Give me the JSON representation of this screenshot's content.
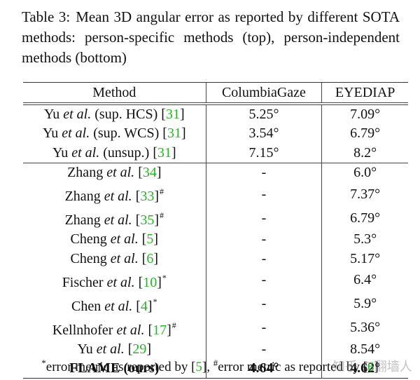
{
  "caption": {
    "label": "Table 3:",
    "text": "Mean 3D angular error as reported by different SOTA methods: person-specific methods (top), person-independent methods (bottom)"
  },
  "table": {
    "headers": [
      "Method",
      "ColumbiaGaze",
      "EYEDIAP"
    ],
    "groups": [
      {
        "name": "person-specific",
        "rows": [
          {
            "author": "Yu",
            "etal": "et al.",
            "extra": " (sup. HCS) ",
            "ref": "31",
            "mark": "",
            "columbia": "5.25°",
            "eyediap": "7.09°",
            "bold": false
          },
          {
            "author": "Yu",
            "etal": "et al.",
            "extra": " (sup. WCS) ",
            "ref": "31",
            "mark": "",
            "columbia": "3.54°",
            "eyediap": "6.79°",
            "bold": false
          },
          {
            "author": "Yu",
            "etal": "et al.",
            "extra": " (unsup.) ",
            "ref": "31",
            "mark": "",
            "columbia": "7.15°",
            "eyediap": "8.2°",
            "bold": false
          }
        ]
      },
      {
        "name": "person-independent",
        "rows": [
          {
            "author": "Zhang",
            "etal": "et al.",
            "extra": " ",
            "ref": "34",
            "mark": "",
            "columbia": "-",
            "eyediap": "6.0°",
            "bold": false
          },
          {
            "author": "Zhang",
            "etal": "et al.",
            "extra": " ",
            "ref": "33",
            "mark": "#",
            "columbia": "-",
            "eyediap": "7.37°",
            "bold": false
          },
          {
            "author": "Zhang",
            "etal": "et al.",
            "extra": " ",
            "ref": "35",
            "mark": "#",
            "columbia": "-",
            "eyediap": "6.79°",
            "bold": false
          },
          {
            "author": "Cheng",
            "etal": "et al.",
            "extra": " ",
            "ref": "5",
            "mark": "",
            "columbia": "-",
            "eyediap": "5.3°",
            "bold": false
          },
          {
            "author": "Cheng",
            "etal": "et al.",
            "extra": " ",
            "ref": "6",
            "mark": "",
            "columbia": "-",
            "eyediap": "5.17°",
            "bold": false
          },
          {
            "author": "Fischer",
            "etal": "et al.",
            "extra": " ",
            "ref": "10",
            "mark": "*",
            "columbia": "-",
            "eyediap": "6.4°",
            "bold": false
          },
          {
            "author": "Chen",
            "etal": "et al.",
            "extra": " ",
            "ref": "4",
            "mark": "*",
            "columbia": "-",
            "eyediap": "5.9°",
            "bold": false
          },
          {
            "author": "Kellnhofer",
            "etal": "et al.",
            "extra": " ",
            "ref": "17",
            "mark": "#",
            "columbia": "-",
            "eyediap": "5.36°",
            "bold": false
          },
          {
            "author": "Yu",
            "etal": "et al.",
            "extra": " ",
            "ref": "29",
            "mark": "",
            "columbia": "-",
            "eyediap": "8.54°",
            "bold": false
          },
          {
            "author": "FLAME (ours)",
            "etal": "",
            "extra": "",
            "ref": "",
            "mark": "",
            "columbia": "4.64°",
            "eyediap": "4.62°",
            "bold": true
          }
        ]
      }
    ]
  },
  "footnote": {
    "star": "*",
    "star_text": "error metric as reported by [",
    "star_ref": "5",
    "mid": "], ",
    "hash": "#",
    "hash_text": "error metric as reported by [",
    "hash_ref": "6",
    "end": "]"
  },
  "watermark": "知乎 @翻墙人",
  "colors": {
    "citation": "#22b822",
    "text": "#111111"
  }
}
